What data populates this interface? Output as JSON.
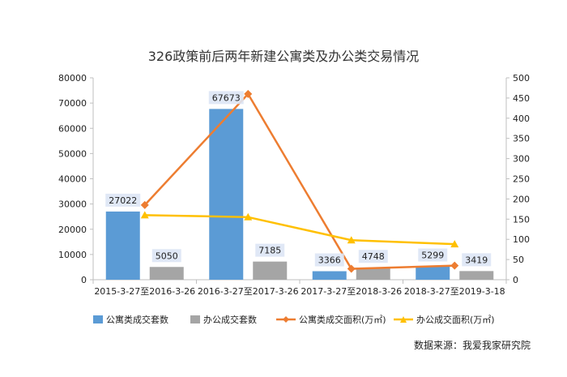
{
  "chart_data": {
    "type": "bar",
    "title": "326政策前后两年新建公寓类及办公类交易情况",
    "categories": [
      "2015-3-27至2016-3-26",
      "2016-3-27至2017-3-26",
      "2017-3-27至2018-3-26",
      "2018-3-27至2019-3-18"
    ],
    "series": [
      {
        "name": "公寓类成交套数",
        "type": "bar",
        "axis": "left",
        "color": "#5B9BD5",
        "values": [
          27022,
          67673,
          3366,
          5299
        ]
      },
      {
        "name": "办公成交套数",
        "type": "bar",
        "axis": "left",
        "color": "#A5A5A5",
        "values": [
          5050,
          7185,
          4748,
          3419
        ]
      },
      {
        "name": "公寓类成交面积(万㎡)",
        "type": "line",
        "axis": "right",
        "color": "#ED7D31",
        "values": [
          185,
          460,
          27,
          35
        ]
      },
      {
        "name": "办公成交面积(万㎡)",
        "type": "line",
        "axis": "right",
        "color": "#FFC000",
        "values": [
          160,
          155,
          98,
          88
        ]
      }
    ],
    "y_left": {
      "min": 0,
      "max": 80000,
      "step": 10000,
      "ticks": [
        "0",
        "10000",
        "20000",
        "30000",
        "40000",
        "50000",
        "60000",
        "70000",
        "80000"
      ]
    },
    "y_right": {
      "min": 0,
      "max": 500,
      "step": 50,
      "ticks": [
        "0",
        "50",
        "100",
        "150",
        "200",
        "250",
        "300",
        "350",
        "400",
        "450",
        "500"
      ]
    },
    "data_labels": {
      "公寓类成交套数": [
        "27022",
        "67673",
        "3366",
        "5299"
      ],
      "办公成交套数": [
        "5050",
        "7185",
        "4748",
        "3419"
      ]
    },
    "grid": false,
    "legend_position": "bottom"
  },
  "source_note": "数据来源：我爱我家研究院"
}
